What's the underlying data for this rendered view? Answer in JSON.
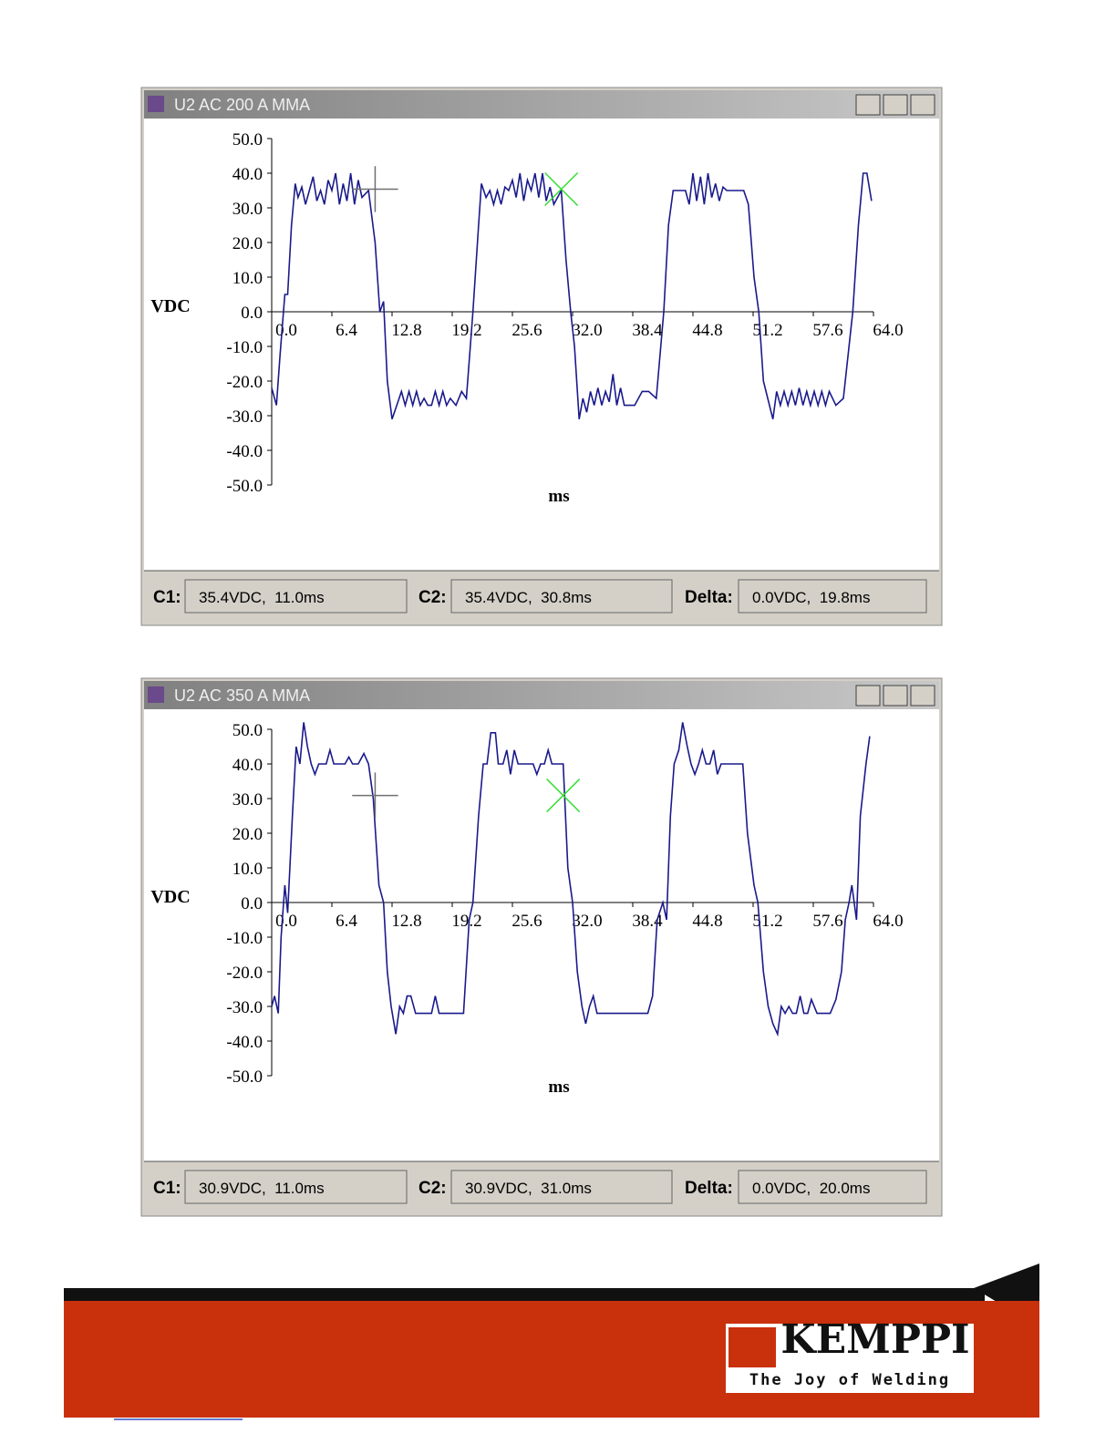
{
  "chart_data": [
    {
      "type": "line",
      "title": "U2 AC 200 A MMA",
      "xlabel": "ms",
      "ylabel": "VDC",
      "color": "#1a1a8c",
      "xlim": [
        0,
        64
      ],
      "ylim": [
        -50,
        50
      ],
      "xticks": [
        {
          "value": 0,
          "label": "0.0"
        },
        6.4,
        12.8,
        19.2,
        25.6,
        {
          "value": 32,
          "label": "32.0"
        },
        38.4,
        44.8,
        51.2,
        57.6,
        {
          "value": 64,
          "label": "64.0"
        }
      ],
      "yticks": [
        {
          "value": 50,
          "label": "50.0"
        },
        {
          "value": 40,
          "label": "40.0"
        },
        {
          "value": 30,
          "label": "30.0"
        },
        {
          "value": 20,
          "label": "20.0"
        },
        {
          "value": 10,
          "label": "10.0"
        },
        {
          "value": 0,
          "label": "0.0"
        },
        {
          "value": -10,
          "label": "-10.0"
        },
        {
          "value": -20,
          "label": "-20.0"
        },
        {
          "value": -30,
          "label": "-30.0"
        },
        {
          "value": -40,
          "label": "-40.0"
        },
        {
          "value": -50,
          "label": "-50.0"
        }
      ],
      "x": [
        0,
        0.5,
        0.9,
        1.4,
        1.7,
        2.1,
        2.5,
        2.8,
        3.2,
        3.6,
        4.0,
        4.4,
        4.8,
        5.2,
        5.6,
        6.0,
        6.4,
        6.8,
        7.2,
        7.6,
        8.0,
        8.4,
        8.8,
        9.2,
        9.6,
        10.3,
        11.0,
        11.5,
        11.9,
        12.3,
        12.8,
        13.3,
        13.8,
        14.2,
        14.6,
        15.0,
        15.4,
        15.8,
        16.2,
        16.6,
        17.0,
        17.4,
        17.8,
        18.2,
        18.6,
        19.0,
        19.6,
        20.2,
        20.7,
        21.4,
        22.0,
        22.3,
        22.8,
        23.2,
        23.6,
        24.0,
        24.4,
        24.8,
        25.2,
        25.6,
        26.0,
        26.4,
        26.8,
        27.2,
        27.6,
        28.0,
        28.4,
        28.8,
        29.2,
        29.6,
        30.0,
        30.8,
        31.3,
        31.8,
        32.2,
        32.7,
        33.1,
        33.5,
        33.9,
        34.3,
        34.7,
        35.1,
        35.5,
        35.9,
        36.3,
        36.7,
        37.1,
        37.5,
        38.0,
        38.6,
        39.4,
        40.1,
        40.9,
        41.7,
        42.2,
        42.7,
        43.6,
        44.0,
        44.4,
        44.8,
        45.2,
        45.6,
        46.0,
        46.4,
        46.8,
        47.2,
        47.6,
        48.0,
        48.4,
        49.0,
        49.6,
        50.2,
        50.7,
        51.3,
        51.8,
        52.3,
        53.3,
        53.7,
        54.1,
        54.5,
        54.9,
        55.3,
        55.7,
        56.1,
        56.5,
        56.9,
        57.3,
        57.7,
        58.1,
        58.5,
        58.9,
        59.3,
        60.0,
        60.8,
        61.8,
        62.4,
        62.9,
        63.3,
        63.8
      ],
      "values": [
        -22,
        -27,
        -12,
        5,
        5,
        25,
        37,
        33,
        36,
        31,
        35,
        39,
        32,
        35,
        31,
        38,
        35,
        40,
        31,
        37,
        32,
        40,
        31,
        38,
        33,
        35,
        20,
        0,
        3,
        -20,
        -31,
        -27,
        -23,
        -27,
        -23,
        -27,
        -23,
        -27,
        -25,
        -27,
        -27,
        -23,
        -27,
        -23,
        -27,
        -25,
        -27,
        -23,
        -25,
        0,
        25,
        37,
        33,
        35,
        31,
        35,
        31,
        36,
        35,
        38,
        33,
        40,
        32,
        38,
        35,
        40,
        33,
        40,
        32,
        36,
        31,
        35,
        15,
        0,
        -10,
        -31,
        -25,
        -29,
        -23,
        -27,
        -22,
        -27,
        -23,
        -26,
        -18,
        -27,
        -22,
        -27,
        -27,
        -27,
        -23,
        -23,
        -25,
        0,
        25,
        35,
        35,
        35,
        31,
        40,
        32,
        39,
        31,
        40,
        33,
        37,
        32,
        36,
        35,
        35,
        35,
        35,
        31,
        10,
        0,
        -20,
        -31,
        -23,
        -27,
        -23,
        -27,
        -23,
        -27,
        -22,
        -27,
        -23,
        -27,
        -23,
        -27,
        -23,
        -27,
        -23,
        -27,
        -25,
        0,
        25,
        40,
        40,
        32
      ],
      "cursors": [
        {
          "x": 11.0,
          "y": 35.4,
          "color": "#707070"
        },
        {
          "x": 30.8,
          "y": 35.4,
          "color": "#33dd33"
        }
      ]
    },
    {
      "type": "line",
      "title": "U2 AC 350 A MMA",
      "xlabel": "ms",
      "ylabel": "VDC",
      "color": "#1a1a8c",
      "xlim": [
        0,
        64
      ],
      "ylim": [
        -50,
        50
      ],
      "xticks": [
        {
          "value": 0,
          "label": "0.0"
        },
        6.4,
        12.8,
        19.2,
        25.6,
        {
          "value": 32,
          "label": "32.0"
        },
        38.4,
        44.8,
        51.2,
        57.6,
        {
          "value": 64,
          "label": "64.0"
        }
      ],
      "yticks": [
        {
          "value": 50,
          "label": "50.0"
        },
        {
          "value": 40,
          "label": "40.0"
        },
        {
          "value": 30,
          "label": "30.0"
        },
        {
          "value": 20,
          "label": "20.0"
        },
        {
          "value": 10,
          "label": "10.0"
        },
        {
          "value": 0,
          "label": "0.0"
        },
        {
          "value": -10,
          "label": "-10.0"
        },
        {
          "value": -20,
          "label": "-20.0"
        },
        {
          "value": -30,
          "label": "-30.0"
        },
        {
          "value": -40,
          "label": "-40.0"
        },
        {
          "value": -50,
          "label": "-50.0"
        }
      ],
      "x": [
        0,
        0.3,
        0.7,
        1.0,
        1.4,
        1.7,
        2.2,
        2.6,
        3.0,
        3.4,
        3.8,
        4.2,
        4.6,
        5.0,
        5.4,
        5.8,
        6.2,
        6.6,
        7.0,
        7.8,
        8.2,
        8.6,
        9.2,
        9.8,
        10.3,
        10.8,
        11.4,
        11.9,
        12.3,
        12.7,
        13.2,
        13.6,
        14.0,
        14.4,
        14.8,
        15.3,
        15.8,
        16.4,
        17.0,
        17.4,
        17.8,
        18.4,
        19.0,
        19.6,
        20.4,
        21.0,
        21.4,
        22.0,
        22.5,
        22.9,
        23.3,
        23.8,
        24.1,
        24.6,
        25.0,
        25.4,
        25.8,
        26.2,
        26.6,
        27.2,
        27.8,
        28.2,
        28.6,
        29.0,
        29.4,
        29.8,
        30.4,
        31.0,
        31.5,
        32.0,
        32.5,
        33.0,
        33.4,
        33.8,
        34.2,
        34.6,
        35.2,
        36.0,
        37.0,
        38.0,
        39.0,
        40.0,
        40.5,
        41.0,
        41.6,
        42.0,
        42.4,
        42.8,
        43.3,
        43.7,
        44.2,
        44.6,
        45.0,
        45.4,
        45.8,
        46.2,
        46.6,
        47.0,
        47.4,
        47.8,
        48.4,
        49.2,
        50.1,
        50.6,
        51.3,
        51.7,
        52.3,
        52.8,
        53.3,
        53.8,
        54.2,
        54.6,
        55.0,
        55.4,
        55.8,
        56.2,
        56.6,
        57.0,
        57.4,
        58.0,
        58.8,
        59.4,
        60.0,
        60.6,
        61.0,
        61.4,
        61.7,
        62.2,
        62.6,
        63.2,
        63.6
      ],
      "values": [
        -30,
        -27,
        -32,
        -10,
        5,
        -3,
        25,
        45,
        40,
        52,
        45,
        40,
        37,
        40,
        40,
        40,
        44,
        40,
        40,
        40,
        42,
        40,
        40,
        43,
        40,
        30,
        5,
        0,
        -20,
        -30,
        -38,
        -30,
        -32,
        -27,
        -27,
        -32,
        -32,
        -32,
        -32,
        -27,
        -32,
        -32,
        -32,
        -32,
        -32,
        -5,
        0,
        25,
        40,
        40,
        49,
        49,
        40,
        40,
        44,
        37,
        44,
        40,
        40,
        40,
        40,
        37,
        40,
        40,
        44,
        40,
        40,
        40,
        10,
        0,
        -20,
        -30,
        -35,
        -30,
        -27,
        -32,
        -32,
        -32,
        -32,
        -32,
        -32,
        -32,
        -27,
        -5,
        0,
        -5,
        25,
        40,
        44,
        52,
        45,
        40,
        37,
        40,
        44,
        40,
        40,
        44,
        37,
        40,
        40,
        40,
        40,
        20,
        5,
        0,
        -20,
        -30,
        -35,
        -38,
        -30,
        -32,
        -30,
        -32,
        -32,
        -27,
        -32,
        -32,
        -28,
        -32,
        -32,
        -32,
        -28,
        -20,
        -5,
        0,
        5,
        -5,
        25,
        40,
        48
      ],
      "cursors": [
        {
          "x": 11.0,
          "y": 30.9,
          "color": "#707070"
        },
        {
          "x": 31.0,
          "y": 30.9,
          "color": "#33dd33"
        }
      ]
    }
  ],
  "windows": [
    {
      "status": [
        {
          "label": "C1:",
          "value": "35.4VDC,  11.0ms"
        },
        {
          "label": "C2:",
          "value": "35.4VDC,  30.8ms"
        },
        {
          "label": "Delta:",
          "value": "0.0VDC,  19.8ms"
        }
      ]
    },
    {
      "status": [
        {
          "label": "C1:",
          "value": "30.9VDC,  11.0ms"
        },
        {
          "label": "C2:",
          "value": "30.9VDC,  31.0ms"
        },
        {
          "label": "Delta:",
          "value": "0.0VDC,  20.0ms"
        }
      ]
    }
  ],
  "footer": {
    "brand": "KEMPPI",
    "tagline": "The Joy of Welding"
  }
}
